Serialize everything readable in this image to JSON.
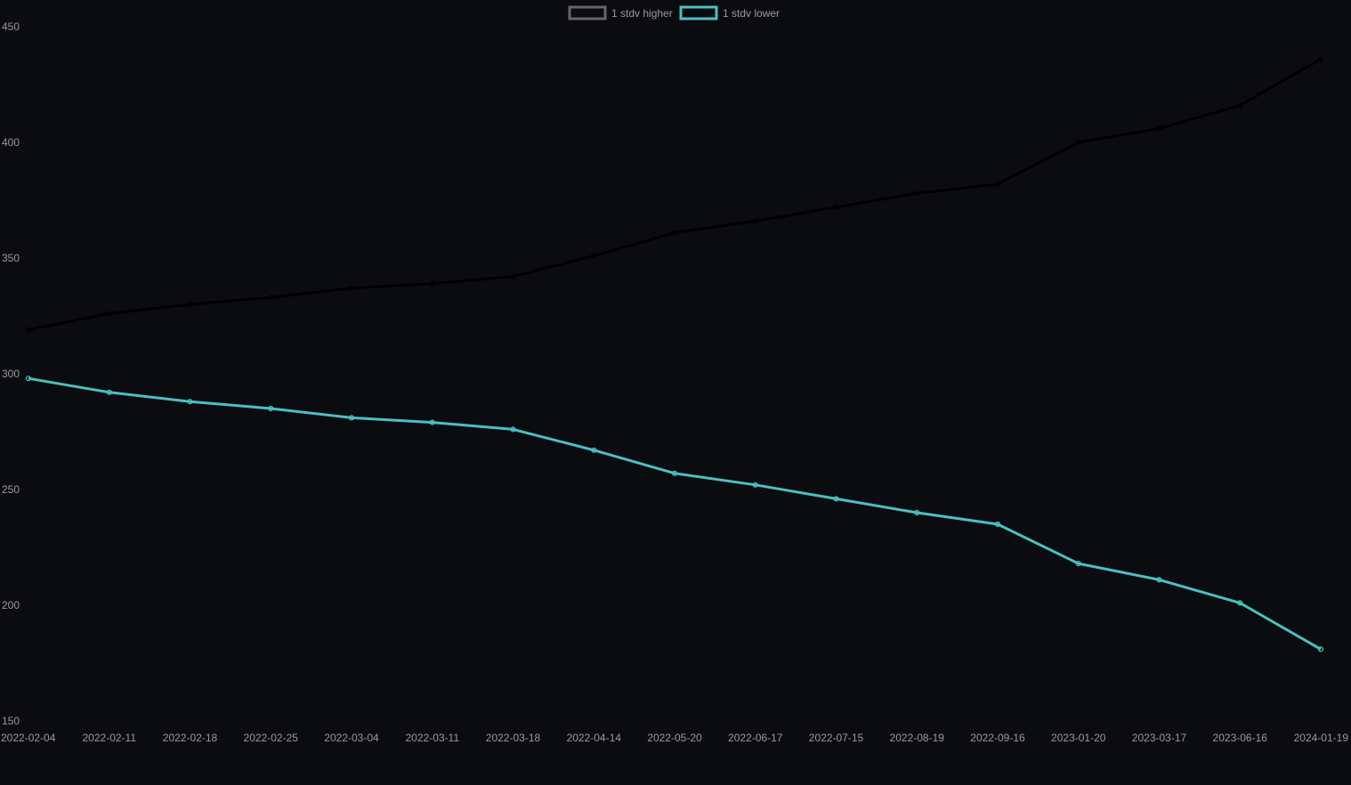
{
  "colors": {
    "background": "#0b0c10",
    "tick_text": "#9a9a9a",
    "higher_line": "#000000",
    "higher_legend_border": "#666666",
    "lower_line": "#4bc0c0"
  },
  "chart_data": {
    "type": "line",
    "title": "",
    "xlabel": "",
    "ylabel": "",
    "grid": false,
    "legend_position": "top-center",
    "categories": [
      "2022-02-04",
      "2022-02-11",
      "2022-02-18",
      "2022-02-25",
      "2022-03-04",
      "2022-03-11",
      "2022-03-18",
      "2022-04-14",
      "2022-05-20",
      "2022-06-17",
      "2022-07-15",
      "2022-08-19",
      "2022-09-16",
      "2023-01-20",
      "2023-03-17",
      "2023-06-16",
      "2024-01-19"
    ],
    "y_ticks": [
      150,
      200,
      250,
      300,
      350,
      400,
      450
    ],
    "ylim": [
      150,
      450
    ],
    "series": [
      {
        "name": "1 stdv higher",
        "color": "#000000",
        "values": [
          319,
          326,
          330,
          333,
          337,
          339,
          342,
          351,
          361,
          366,
          372,
          378,
          382,
          400,
          406,
          416,
          436
        ]
      },
      {
        "name": "1 stdv lower",
        "color": "#4bc0c0",
        "values": [
          298,
          292,
          288,
          285,
          281,
          279,
          276,
          267,
          257,
          252,
          246,
          240,
          235,
          218,
          211,
          201,
          181
        ]
      }
    ]
  }
}
